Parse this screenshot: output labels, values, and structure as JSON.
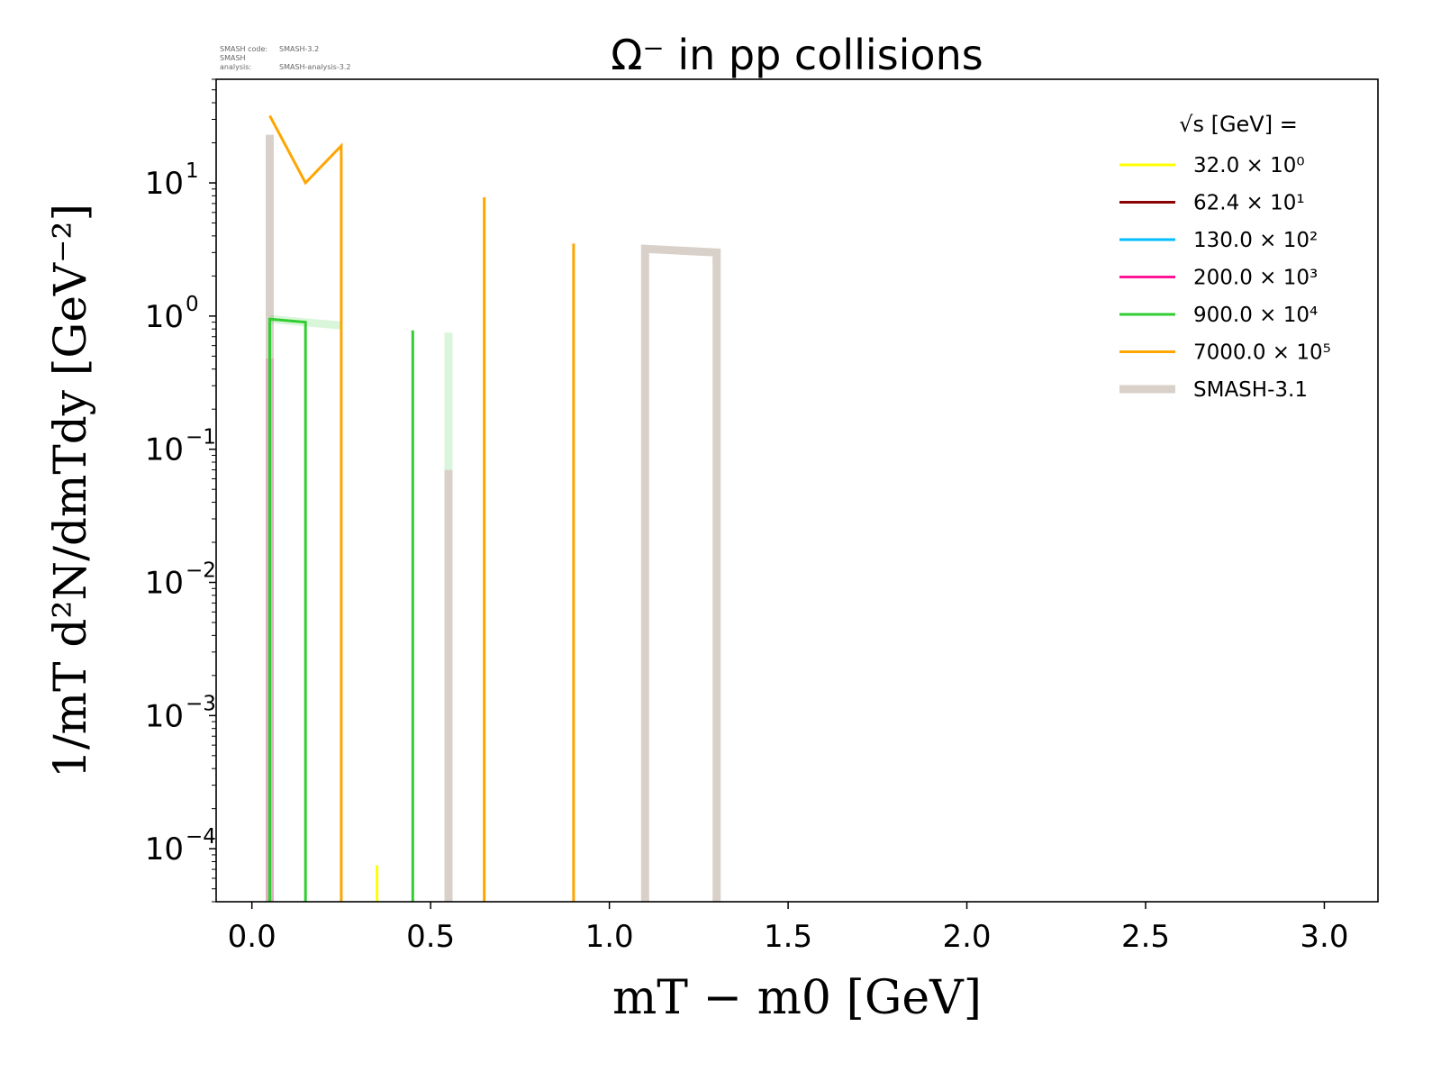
{
  "header": {
    "smash_code_label": "SMASH code:",
    "smash_code_value": "SMASH-3.2",
    "smash_analysis_label": "SMASH analysis:",
    "smash_analysis_value": "SMASH-analysis-3.2"
  },
  "chart_data": {
    "type": "line",
    "title": "Ω⁻ in pp collisions",
    "xlabel": "mT − m0 [GeV]",
    "ylabel": "1/mT d²N/dmTdy [GeV⁻²]",
    "xscale": "linear",
    "yscale": "log",
    "xlim": [
      -0.1,
      3.15
    ],
    "ylim": [
      4e-05,
      60
    ],
    "x_ticks": [
      "0.0",
      "0.5",
      "1.0",
      "1.5",
      "2.0",
      "2.5",
      "3.0"
    ],
    "y_ticks": [
      {
        "base": "10",
        "exp": "−4"
      },
      {
        "base": "10",
        "exp": "−3"
      },
      {
        "base": "10",
        "exp": "−2"
      },
      {
        "base": "10",
        "exp": "−1"
      },
      {
        "base": "10",
        "exp": "0"
      },
      {
        "base": "10",
        "exp": "1"
      }
    ],
    "grid": false,
    "legend_position": "top-right",
    "legend_title": "√s [GeV] =",
    "series": [
      {
        "name": "32.0 × 10⁰",
        "color": "#ffff00",
        "width": 3,
        "opacity": 1,
        "x": [
          0.35,
          0.35
        ],
        "y": [
          4e-05,
          7.5e-05
        ]
      },
      {
        "name": "62.4 × 10¹",
        "color": "#8b0000",
        "width": 3,
        "opacity": 1,
        "x": [],
        "y": []
      },
      {
        "name": "130.0 × 10²",
        "color": "#00bfff",
        "width": 3,
        "opacity": 1,
        "x": [],
        "y": []
      },
      {
        "name": "200.0 × 10³",
        "color": "#ff1493",
        "width": 3,
        "opacity": 1,
        "x": [
          0.05,
          0.05
        ],
        "y": [
          4e-05,
          0.18
        ]
      },
      {
        "name": "900.0 × 10⁴",
        "color": "#32cd32",
        "width": 3,
        "opacity": 1,
        "x": [
          0.05,
          0.05,
          0.15,
          0.15,
          null,
          0.45,
          0.45
        ],
        "y": [
          4e-05,
          0.95,
          0.9,
          4e-05,
          null,
          4e-05,
          0.78
        ]
      },
      {
        "name": "7000.0 × 10⁵",
        "color": "#ffa500",
        "width": 3,
        "opacity": 1,
        "x": [
          0.05,
          0.15,
          0.25,
          0.25,
          null,
          0.65,
          0.65,
          null,
          0.9,
          0.9
        ],
        "y": [
          32,
          10,
          19,
          4e-05,
          null,
          4e-05,
          7.8,
          null,
          4e-05,
          3.5
        ]
      }
    ],
    "reference_series": [
      {
        "name": "SMASH-3.1",
        "color": "#d9d0c9",
        "width": 9,
        "opacity": 1,
        "x": [
          0.05,
          0.05,
          null,
          0.55,
          0.55,
          null,
          1.1,
          1.1,
          1.3,
          1.3
        ],
        "y": [
          4e-05,
          23,
          null,
          4e-05,
          0.07,
          null,
          4e-05,
          3.2,
          3.0,
          4e-05
        ]
      },
      {
        "name": "",
        "color": "#32cd32",
        "width": 9,
        "opacity": 0.18,
        "x": [
          0.05,
          0.25,
          null,
          0.55,
          0.55
        ],
        "y": [
          0.95,
          0.85,
          null,
          0.07,
          0.75
        ]
      },
      {
        "name": "",
        "color": "#ff1493",
        "width": 9,
        "opacity": 0.18,
        "x": [
          0.05,
          0.05
        ],
        "y": [
          4e-05,
          0.48
        ]
      }
    ]
  }
}
